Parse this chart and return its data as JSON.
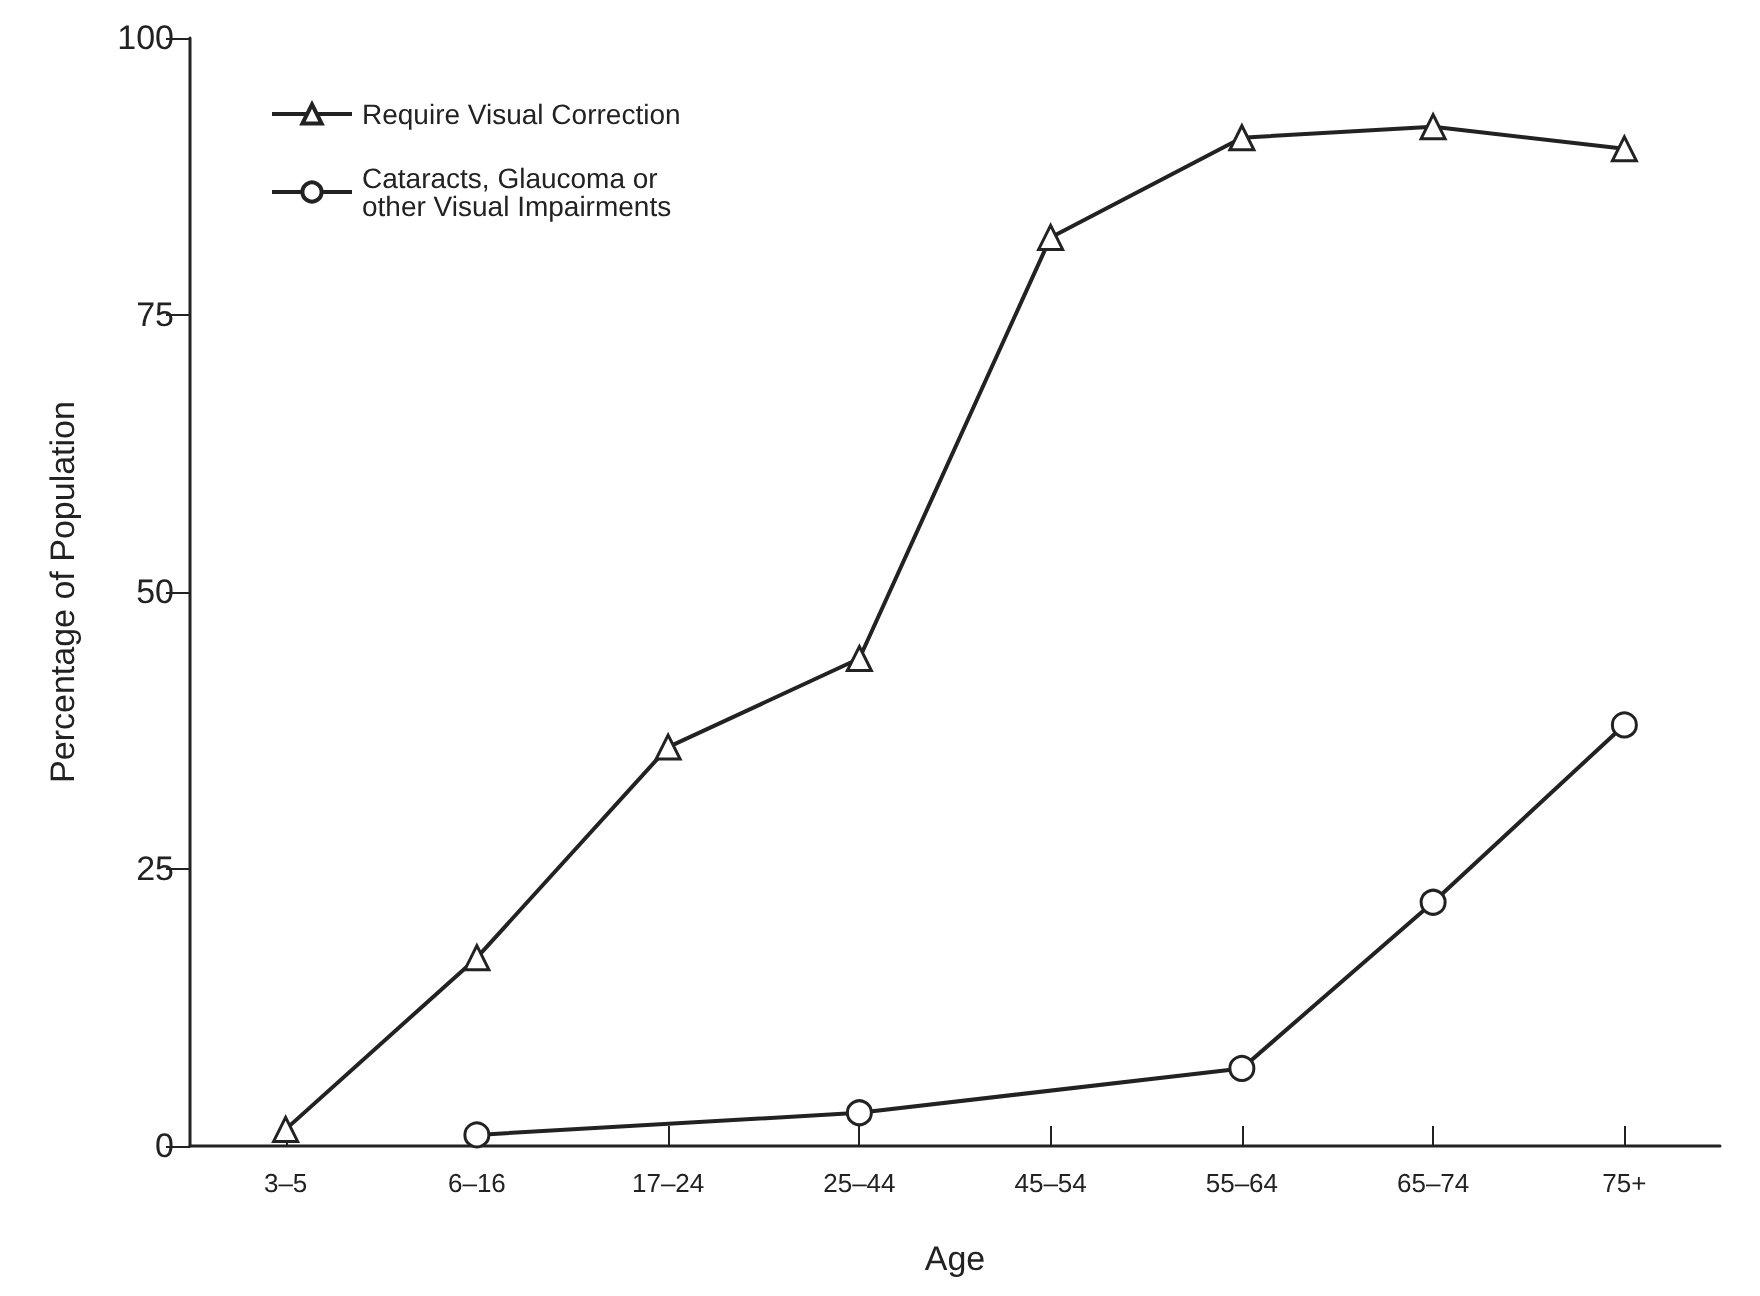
{
  "chart_data": {
    "type": "line",
    "xlabel": "Age",
    "ylabel": "Percentage of Population",
    "categories": [
      "3–5",
      "6–16",
      "17–24",
      "25–44",
      "45–54",
      "55–64",
      "65–74",
      "75+"
    ],
    "series": [
      {
        "name": "Require Visual Correction",
        "color": "#222222",
        "marker": "triangle",
        "values": [
          1.5,
          17,
          36,
          44,
          82,
          91,
          92,
          90
        ]
      },
      {
        "name": "Cataracts, Glaucoma or\nother Visual Impairments",
        "color": "#222222",
        "marker": "circle",
        "x": [
          "6–16",
          "25–44",
          "55–64",
          "65–74",
          "75+"
        ],
        "values": [
          1,
          3,
          7,
          22,
          38
        ]
      }
    ],
    "ylim": [
      0,
      100
    ],
    "yticks": [
      0,
      25,
      50,
      75,
      100
    ],
    "grid": false,
    "legend": "top left",
    "line_style": "solid"
  }
}
